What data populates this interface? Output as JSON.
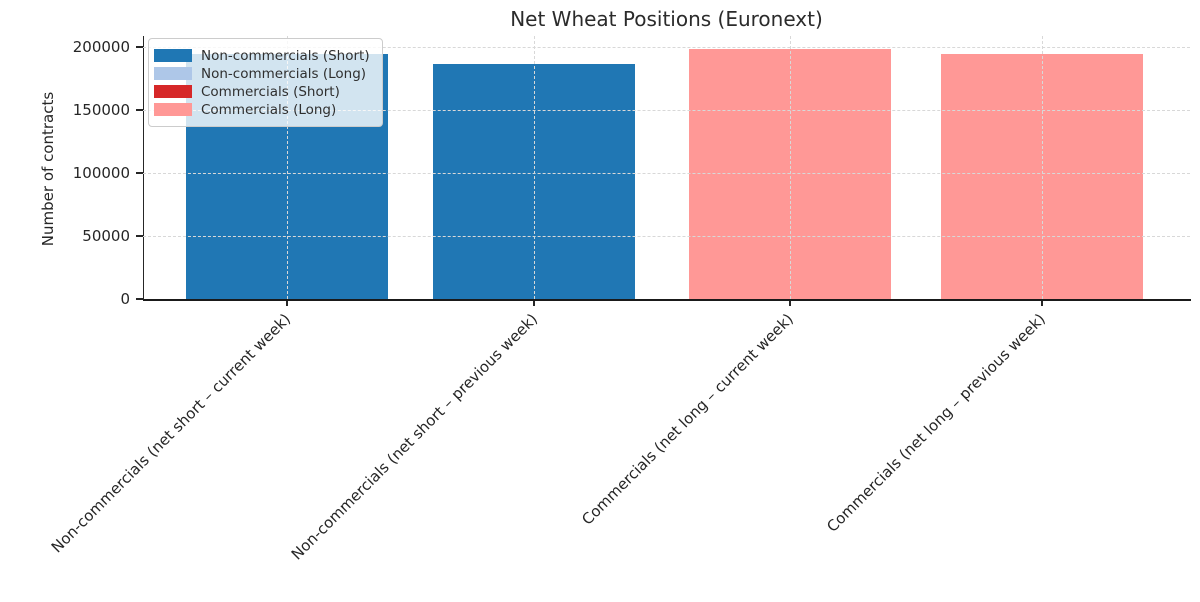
{
  "chart_data": {
    "type": "bar",
    "title": "Net Wheat Positions (Euronext)",
    "xlabel": "",
    "ylabel": "Number of contracts",
    "categories": [
      "Non-commercials (net short – current week)",
      "Non-commercials (net short – previous week)",
      "Commercials (net long – current week)",
      "Commercials (net long – previous week)"
    ],
    "values": [
      195000,
      186500,
      199000,
      194500
    ],
    "bar_colors": [
      "#2077b4",
      "#2077b4",
      "#ff9896",
      "#ff9896"
    ],
    "yticks": [
      0,
      50000,
      100000,
      150000,
      200000
    ],
    "ylim": [
      0,
      209000
    ],
    "grid": "dashed horizontal and vertical gridlines drawn over bars",
    "x_tick_rotation_deg": 45,
    "legend": {
      "position": "upper left",
      "entries": [
        {
          "label": "Non-commercials (Short)",
          "color": "#1f77b4"
        },
        {
          "label": "Non-commercials (Long)",
          "color": "#aec7e8"
        },
        {
          "label": "Commercials (Short)",
          "color": "#d62728"
        },
        {
          "label": "Commercials (Long)",
          "color": "#ff9896"
        }
      ]
    },
    "colors": {
      "axis_spine": "#262626",
      "grid_line": "#d8d8d8",
      "text": "#262626",
      "background": "#ffffff"
    }
  }
}
